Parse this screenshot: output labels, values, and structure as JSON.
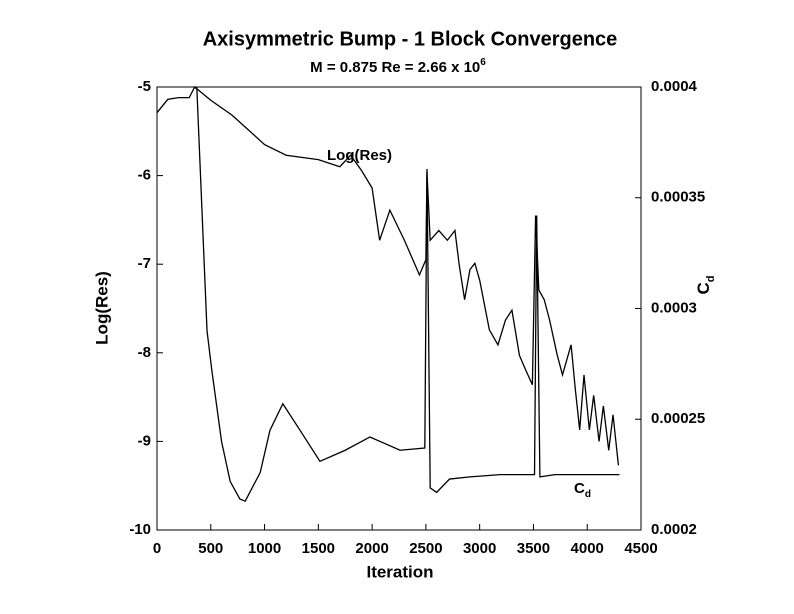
{
  "chart_data": {
    "type": "line",
    "title": "Axisymmetric Bump - 1 Block Convergence",
    "subtitle": "M = 0.875   Re = 2.66 x 10",
    "subtitle_superscript": "6",
    "x_label": "Iteration",
    "y_label": "Log(Res)",
    "y2_label": "C",
    "y2_label_subscript": "d",
    "annotations": [
      {
        "text": "Log(Res)"
      },
      {
        "text": "C",
        "subscript": "d"
      }
    ],
    "xlim": [
      0,
      4500
    ],
    "xticks": [
      0,
      500,
      1000,
      1500,
      2000,
      2500,
      3000,
      3500,
      4000,
      4500
    ],
    "ylim": [
      -10,
      -5
    ],
    "yticks": [
      -5,
      -6,
      -7,
      -8,
      -9,
      -10
    ],
    "y2lim": [
      0.0002,
      0.0004
    ],
    "y2ticks": [
      0.0004,
      0.00035,
      0.0003,
      0.00025,
      0.0002
    ],
    "series": [
      {
        "name": "Log(Res)",
        "color": "#000000",
        "x": [
          0,
          100,
          200,
          300,
          350,
          500,
          700,
          1000,
          1200,
          1500,
          1700,
          1800,
          1900,
          2000,
          2070,
          2165,
          2300,
          2440,
          2500,
          2510,
          2540,
          2620,
          2700,
          2770,
          2810,
          2860,
          2910,
          2955,
          3000,
          3090,
          3170,
          3240,
          3300,
          3370,
          3430,
          3490,
          3520,
          3550,
          3600,
          3650,
          3720,
          3770,
          3850,
          3890,
          3930,
          3970,
          4020,
          4060,
          4110,
          4150,
          4200,
          4240,
          4290
        ],
        "values": [
          -5.29,
          -5.14,
          -5.12,
          -5.12,
          -5.0,
          -5.15,
          -5.32,
          -5.65,
          -5.77,
          -5.82,
          -5.9,
          -5.77,
          -5.94,
          -6.14,
          -6.73,
          -6.39,
          -6.73,
          -7.12,
          -6.95,
          -5.96,
          -6.73,
          -6.62,
          -6.73,
          -6.62,
          -7.01,
          -7.4,
          -7.06,
          -6.99,
          -7.18,
          -7.74,
          -7.91,
          -7.63,
          -7.52,
          -8.03,
          -8.2,
          -8.36,
          -6.45,
          -7.29,
          -7.4,
          -7.63,
          -8.02,
          -8.25,
          -7.91,
          -8.42,
          -8.87,
          -8.25,
          -8.87,
          -8.48,
          -9.0,
          -8.6,
          -9.1,
          -8.7,
          -9.27
        ]
      },
      {
        "name": "C",
        "color": "#000000",
        "axis": "y2",
        "x": [
          370,
          465,
          510,
          600,
          680,
          770,
          820,
          960,
          1050,
          1170,
          1330,
          1515,
          1750,
          1980,
          2260,
          2490,
          2510,
          2540,
          2600,
          2720,
          2910,
          3190,
          3510,
          3530,
          3560,
          3700,
          4300
        ],
        "values": [
          0.0004,
          0.00029,
          0.000272,
          0.00024,
          0.000222,
          0.000214,
          0.000213,
          0.000226,
          0.000245,
          0.000257,
          0.000245,
          0.000231,
          0.000236,
          0.000242,
          0.000236,
          0.000237,
          0.000363,
          0.000219,
          0.000217,
          0.000223,
          0.000224,
          0.000225,
          0.000225,
          0.000342,
          0.000224,
          0.000225,
          0.000225
        ]
      }
    ]
  }
}
